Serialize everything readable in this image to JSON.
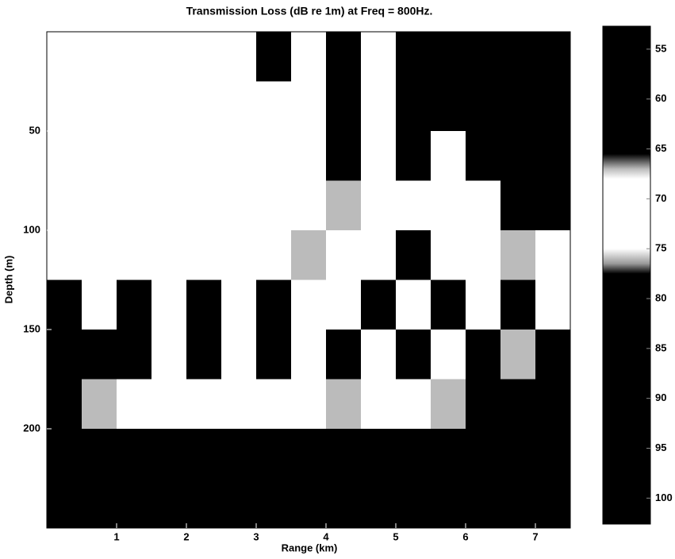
{
  "chart_data": {
    "type": "heatmap",
    "title": "Transmission Loss (dB re 1m) at Freq = 800Hz.",
    "xlabel": "Range (km)",
    "ylabel": "Depth (m)",
    "xlim": [
      0,
      7.5
    ],
    "ylim": [
      0,
      250
    ],
    "y_inverted": true,
    "xticks": [
      1,
      2,
      3,
      4,
      5,
      6,
      7
    ],
    "yticks": [
      50,
      100,
      150,
      200
    ],
    "xbins": [
      0,
      0.5,
      1,
      1.5,
      2,
      2.5,
      3,
      3.5,
      4,
      4.5,
      5,
      5.5,
      6,
      6.5,
      7,
      7.5
    ],
    "ybins": [
      0,
      25,
      50,
      75,
      100,
      125,
      150,
      175,
      200,
      225,
      250
    ],
    "values": [
      [
        70,
        71,
        70,
        72,
        71,
        73,
        80,
        74,
        82,
        71,
        88,
        90,
        90,
        90,
        90
      ],
      [
        71,
        70,
        72,
        71,
        72,
        74,
        73,
        72,
        84,
        70,
        86,
        88,
        84,
        90,
        90
      ],
      [
        72,
        71,
        70,
        73,
        72,
        71,
        72,
        70,
        78,
        70,
        78,
        74,
        80,
        88,
        90
      ],
      [
        73,
        72,
        71,
        72,
        70,
        73,
        72,
        74,
        76,
        71,
        74,
        73,
        75,
        78,
        90
      ],
      [
        74,
        73,
        72,
        71,
        75,
        72,
        74,
        76,
        74,
        70,
        80,
        72,
        72,
        76,
        74
      ],
      [
        78,
        74,
        80,
        72,
        78,
        73,
        80,
        75,
        72,
        78,
        72,
        82,
        70,
        80,
        72
      ],
      [
        84,
        79,
        82,
        74,
        80,
        72,
        78,
        72,
        80,
        74,
        82,
        72,
        84,
        76,
        80
      ],
      [
        86,
        76,
        72,
        70,
        74,
        71,
        72,
        70,
        76,
        72,
        74,
        76,
        86,
        90,
        92
      ],
      [
        100,
        100,
        100,
        100,
        100,
        100,
        100,
        100,
        100,
        100,
        100,
        100,
        100,
        100,
        100
      ],
      [
        100,
        100,
        100,
        100,
        100,
        100,
        100,
        100,
        100,
        100,
        100,
        100,
        100,
        100,
        100
      ]
    ],
    "colorbar": {
      "clim": [
        52.7,
        102.6
      ],
      "ticks": [
        55,
        60,
        65,
        70,
        75,
        80,
        85,
        90,
        95,
        100
      ]
    },
    "colormap": [
      {
        "value": 52.7,
        "color": "#000000"
      },
      {
        "value": 65.5,
        "color": "#000000"
      },
      {
        "value": 67,
        "color": "#bbbbbb"
      },
      {
        "value": 68,
        "color": "#ffffff"
      },
      {
        "value": 75,
        "color": "#ffffff"
      },
      {
        "value": 76.5,
        "color": "#999999"
      },
      {
        "value": 77.5,
        "color": "#000000"
      },
      {
        "value": 102.6,
        "color": "#000000"
      }
    ]
  }
}
